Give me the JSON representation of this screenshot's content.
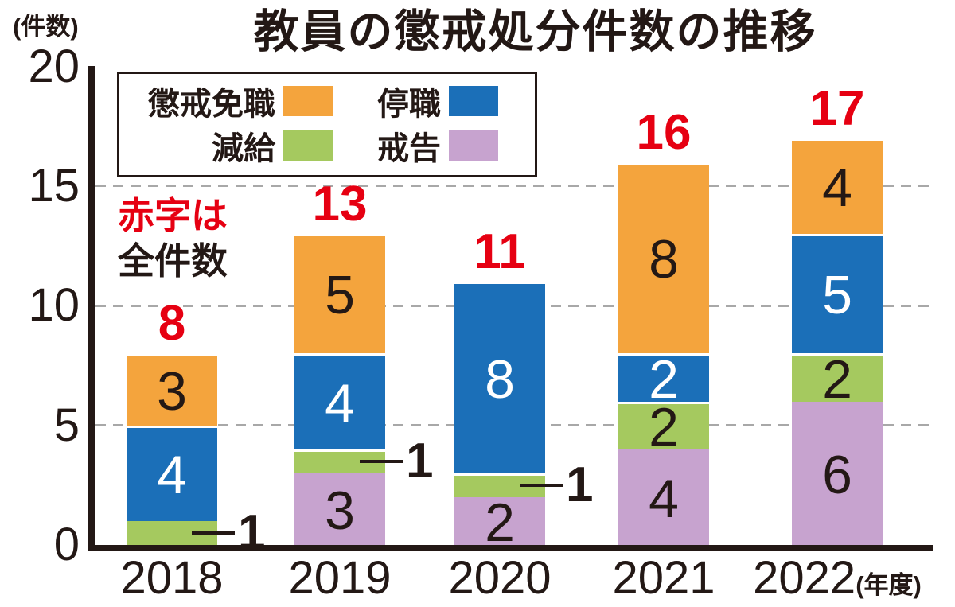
{
  "title": "教員の懲戒処分件数の推移",
  "y_axis": {
    "unit_label": "(件数)",
    "ticks": [
      20,
      15,
      10,
      5,
      0
    ]
  },
  "x_axis": {
    "unit_label": "(年度)"
  },
  "note": {
    "highlight": "赤字は",
    "line2": "全件数"
  },
  "legend": {
    "items": [
      {
        "name": "dismissal",
        "label": "懲戒免職",
        "color": "#f4a43d"
      },
      {
        "name": "suspension",
        "label": "停職",
        "color": "#1b6fb8"
      },
      {
        "name": "pay-cut",
        "label": "減給",
        "color": "#a5c95f"
      },
      {
        "name": "reprimand",
        "label": "戒告",
        "color": "#c7a3cf"
      }
    ]
  },
  "colors": {
    "text": "#231815",
    "red": "#e60012",
    "grid": "#a8a8a8",
    "dismissal": "#f4a43d",
    "suspension": "#1b6fb8",
    "pay_cut": "#a5c95f",
    "reprimand": "#c7a3cf"
  },
  "chart_data": {
    "type": "bar",
    "stacked": true,
    "title": "教員の懲戒処分件数の推移",
    "xlabel": "(年度)",
    "ylabel": "(件数)",
    "categories": [
      "2018",
      "2019",
      "2020",
      "2021",
      "2022"
    ],
    "series": [
      {
        "name": "懲戒免職",
        "key": "dismissal",
        "color": "#f4a43d",
        "label_color": "#231815",
        "values": [
          3,
          5,
          0,
          8,
          4
        ]
      },
      {
        "name": "停職",
        "key": "suspension",
        "color": "#1b6fb8",
        "label_color": "#ffffff",
        "values": [
          4,
          4,
          8,
          2,
          5
        ]
      },
      {
        "name": "減給",
        "key": "pay-cut",
        "color": "#a5c95f",
        "label_color": "#231815",
        "values": [
          1,
          1,
          1,
          2,
          2
        ]
      },
      {
        "name": "戒告",
        "key": "reprimand",
        "color": "#c7a3cf",
        "label_color": "#231815",
        "values": [
          0,
          3,
          2,
          4,
          6
        ]
      }
    ],
    "stack_order_bottom_to_top": [
      "戒告",
      "減給",
      "停職",
      "懲戒免職"
    ],
    "totals": [
      8,
      13,
      11,
      16,
      17
    ],
    "totals_note": "赤字は全件数",
    "ylim": [
      0,
      20
    ],
    "yticks": [
      0,
      5,
      10,
      15,
      20
    ],
    "grid": "dashed horizontal lines at 5, 10, 15",
    "legend_position": "top-left inside plot",
    "callouts": "減給 segments with value 1 labeled outside bar with leader line (2018, 2019, 2020)"
  }
}
